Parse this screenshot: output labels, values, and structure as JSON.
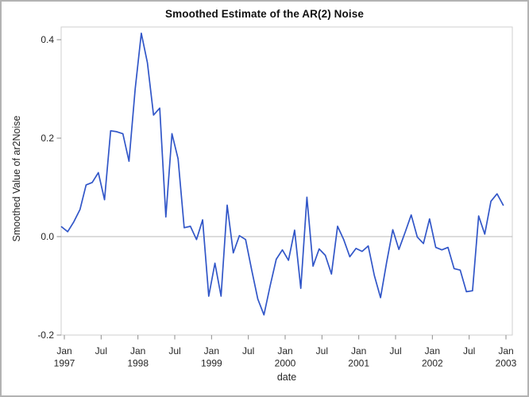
{
  "window": {
    "kind": "SAS ODS graph output"
  },
  "colors": {
    "line": "#3156c8",
    "frame": "#cfcfcf",
    "tick": "#8c8c8c",
    "reference_line": "#b8b8b8",
    "text": "#262626",
    "title_text": "#111111",
    "background": "#ffffff",
    "border": "#b3b3b3"
  },
  "chart_data": {
    "type": "line",
    "title": "Smoothed Estimate of the AR(2) Noise",
    "xlabel": "date",
    "ylabel": "Smoothed Value of ar2Noise",
    "x_start": "Jan 1997",
    "x_end": "Jan 2003",
    "x_frequency": "monthly",
    "ylim": [
      -0.2,
      0.4
    ],
    "yticks": [
      0.4,
      0.2,
      0.0,
      -0.2
    ],
    "ytick_labels": [
      "0.4",
      "0.2",
      "0.0",
      "-0.2"
    ],
    "xticks": [
      {
        "month": "Jan",
        "year": "1997"
      },
      {
        "month": "Jul",
        "year": ""
      },
      {
        "month": "Jan",
        "year": "1998"
      },
      {
        "month": "Jul",
        "year": ""
      },
      {
        "month": "Jan",
        "year": "1999"
      },
      {
        "month": "Jul",
        "year": ""
      },
      {
        "month": "Jan",
        "year": "2000"
      },
      {
        "month": "Jul",
        "year": ""
      },
      {
        "month": "Jan",
        "year": "2001"
      },
      {
        "month": "Jul",
        "year": ""
      },
      {
        "month": "Jan",
        "year": "2002"
      },
      {
        "month": "Jul",
        "year": ""
      },
      {
        "month": "Jan",
        "year": "2003"
      }
    ],
    "grid": false,
    "legend": "none",
    "reference_line_y": 0.0,
    "series": [
      {
        "name": "Smoothed Value of ar2Noise",
        "values": [
          0.02,
          0.01,
          0.03,
          0.055,
          0.105,
          0.11,
          0.13,
          0.075,
          0.215,
          0.213,
          0.209,
          0.153,
          0.3,
          0.413,
          0.353,
          0.247,
          0.261,
          0.04,
          0.209,
          0.158,
          0.018,
          0.021,
          -0.006,
          0.034,
          -0.121,
          -0.054,
          -0.121,
          0.064,
          -0.033,
          0.002,
          -0.006,
          -0.068,
          -0.127,
          -0.159,
          -0.1,
          -0.046,
          -0.027,
          -0.048,
          0.013,
          -0.105,
          0.08,
          -0.06,
          -0.025,
          -0.038,
          -0.076,
          0.021,
          -0.006,
          -0.041,
          -0.024,
          -0.03,
          -0.019,
          -0.079,
          -0.124,
          -0.052,
          0.014,
          -0.026,
          0.008,
          0.044,
          -0.001,
          -0.014,
          0.036,
          -0.022,
          -0.027,
          -0.022,
          -0.065,
          -0.068,
          -0.112,
          -0.11,
          0.042,
          0.005,
          0.072,
          0.087,
          0.064
        ]
      }
    ]
  }
}
